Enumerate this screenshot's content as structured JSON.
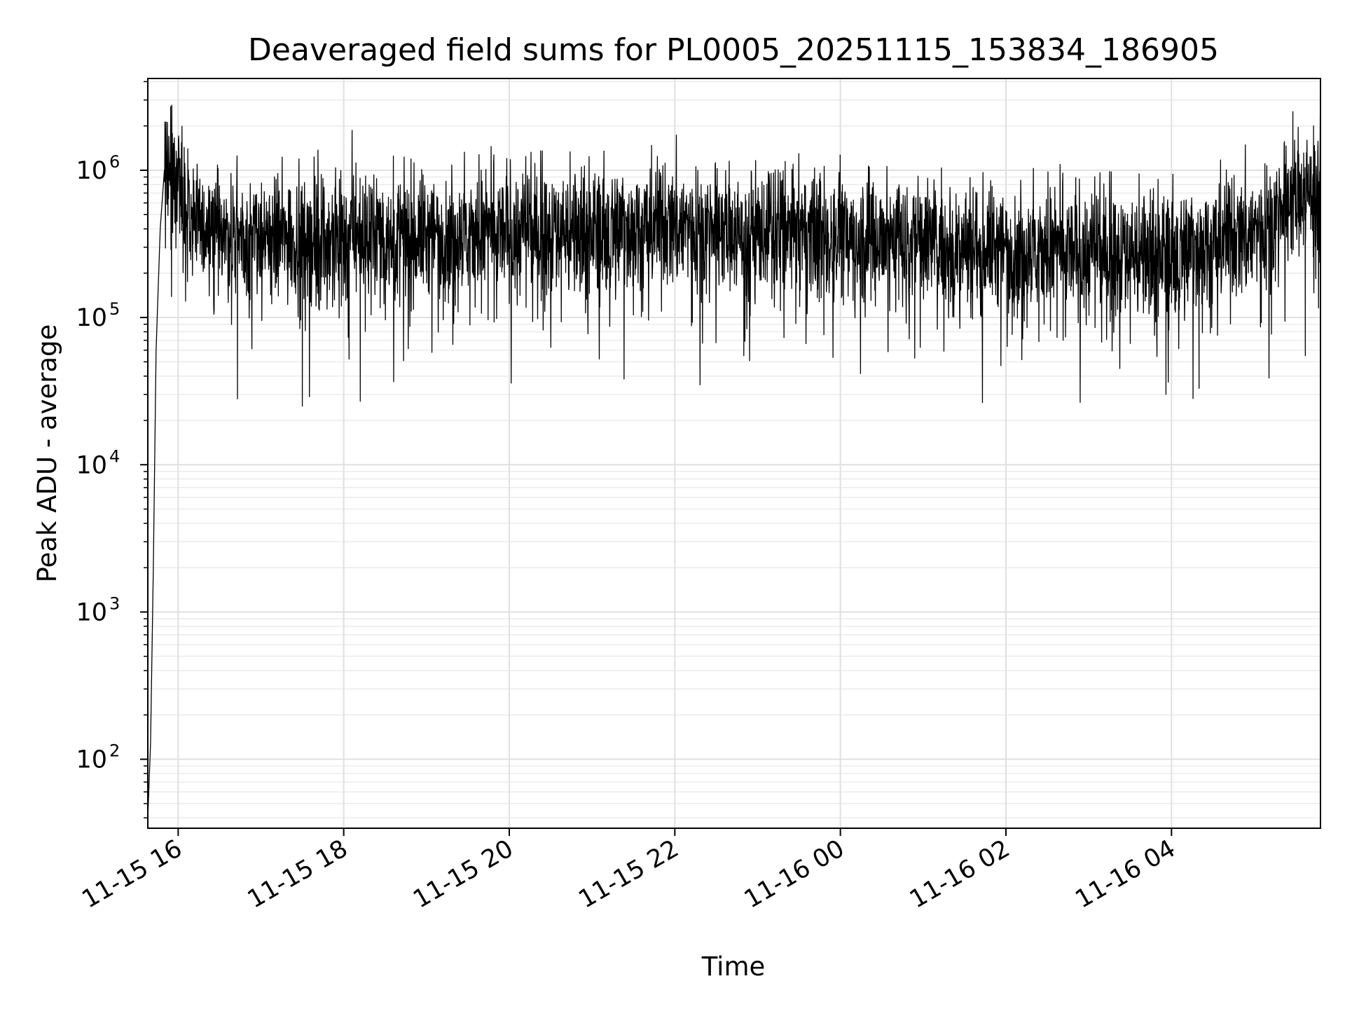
{
  "chart_data": {
    "type": "line",
    "title": "Deaveraged field sums for PL0005_20251115_153834_186905",
    "xlabel": "Time",
    "ylabel": "Peak ADU - average",
    "yscale": "log",
    "xlim": [
      "2025-11-15 15:38",
      "2025-11-16 05:48"
    ],
    "ylim": [
      34,
      4200000
    ],
    "grid": true,
    "x_tick_labels": [
      "11-15 16",
      "11-15 18",
      "11-15 20",
      "11-15 22",
      "11-16 00",
      "11-16 02",
      "11-16 04"
    ],
    "x_ticks": [
      "2025-11-15 16:00",
      "2025-11-15 18:00",
      "2025-11-15 20:00",
      "2025-11-15 22:00",
      "2025-11-16 00:00",
      "2025-11-16 02:00",
      "2025-11-16 04:00"
    ],
    "y_ticks": [
      100,
      1000,
      10000,
      100000,
      1000000
    ],
    "y_tick_labels": [
      {
        "base": "10",
        "exp": "2"
      },
      {
        "base": "10",
        "exp": "3"
      },
      {
        "base": "10",
        "exp": "4"
      },
      {
        "base": "10",
        "exp": "5"
      },
      {
        "base": "10",
        "exp": "6"
      }
    ],
    "series": [
      {
        "color": "#000000",
        "baseline": [
          {
            "t": "2025-11-15 15:38",
            "y": 40
          },
          {
            "t": "2025-11-15 15:40",
            "y": 130
          },
          {
            "t": "2025-11-15 15:42",
            "y": 2000
          },
          {
            "t": "2025-11-15 15:44",
            "y": 60000
          },
          {
            "t": "2025-11-15 15:47",
            "y": 400000
          },
          {
            "t": "2025-11-15 15:50",
            "y": 1000000
          },
          {
            "t": "2025-11-15 16:00",
            "y": 1050000
          },
          {
            "t": "2025-11-15 16:05",
            "y": 600000
          },
          {
            "t": "2025-11-15 16:20",
            "y": 380000
          },
          {
            "t": "2025-11-15 17:00",
            "y": 350000
          },
          {
            "t": "2025-11-15 18:00",
            "y": 350000
          },
          {
            "t": "2025-11-15 19:00",
            "y": 360000
          },
          {
            "t": "2025-11-15 20:00",
            "y": 380000
          },
          {
            "t": "2025-11-15 21:00",
            "y": 400000
          },
          {
            "t": "2025-11-15 22:00",
            "y": 430000
          },
          {
            "t": "2025-11-15 23:00",
            "y": 380000
          },
          {
            "t": "2025-11-16 00:00",
            "y": 360000
          },
          {
            "t": "2025-11-16 01:00",
            "y": 360000
          },
          {
            "t": "2025-11-16 02:00",
            "y": 290000
          },
          {
            "t": "2025-11-16 03:00",
            "y": 280000
          },
          {
            "t": "2025-11-16 04:00",
            "y": 280000
          },
          {
            "t": "2025-11-16 05:00",
            "y": 380000
          },
          {
            "t": "2025-11-16 05:48",
            "y": 900000
          }
        ],
        "noise_spread_decades": 0.22,
        "notable_points": [
          {
            "t": "2025-11-15 16:07",
            "y": 1400000
          },
          {
            "t": "2025-11-15 16:43",
            "y": 28000
          },
          {
            "t": "2025-11-15 17:30",
            "y": 25000
          },
          {
            "t": "2025-11-15 18:12",
            "y": 27000
          },
          {
            "t": "2025-11-15 18:36",
            "y": 1250000
          },
          {
            "t": "2025-11-15 22:50",
            "y": 55000
          },
          {
            "t": "2025-11-15 23:20",
            "y": 1150000
          },
          {
            "t": "2025-11-16 03:56",
            "y": 30000
          },
          {
            "t": "2025-11-16 04:20",
            "y": 33000
          },
          {
            "t": "2025-11-16 05:28",
            "y": 2500000
          },
          {
            "t": "2025-11-16 05:43",
            "y": 2000000
          },
          {
            "t": "2025-11-16 05:37",
            "y": 55000
          }
        ]
      }
    ]
  }
}
